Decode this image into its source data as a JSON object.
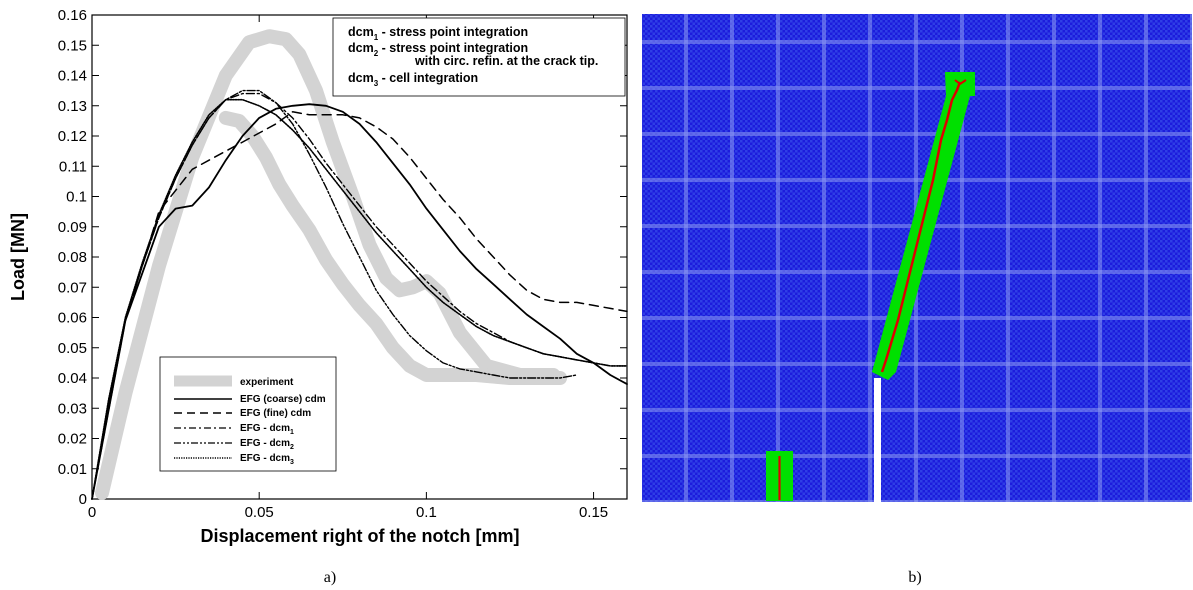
{
  "chart_data": [
    {
      "type": "line",
      "caption": "a)",
      "xlabel": "Displacement right of the notch [mm]",
      "ylabel": "Load [MN]",
      "xlim": [
        0,
        0.16
      ],
      "ylim": [
        0,
        0.16
      ],
      "x_ticks": [
        "0",
        "0.05",
        "0.1",
        "0.15"
      ],
      "x_tick_values": [
        0,
        0.05,
        0.1,
        0.15
      ],
      "y_ticks": [
        "0",
        "0.01",
        "0.02",
        "0.03",
        "0.04",
        "0.05",
        "0.06",
        "0.07",
        "0.08",
        "0.09",
        "0.1",
        "0.11",
        "0.12",
        "0.13",
        "0.14",
        "0.15",
        "0.16"
      ],
      "y_tick_values": [
        0,
        0.01,
        0.02,
        0.03,
        0.04,
        0.05,
        0.06,
        0.07,
        0.08,
        0.09,
        0.1,
        0.11,
        0.12,
        0.13,
        0.14,
        0.15,
        0.16
      ],
      "annotation": {
        "lines": [
          {
            "main": "dcm",
            "sub": "1",
            "rest": " - stress point integration"
          },
          {
            "main": "dcm",
            "sub": "2",
            "rest": " - stress point integration"
          },
          {
            "main": "",
            "sub": "",
            "rest": "with circ. refin. at the crack tip."
          },
          {
            "main": "dcm",
            "sub": "3",
            "rest": " - cell integration"
          }
        ]
      },
      "legend_position": "bottom-left",
      "series": [
        {
          "name": "experiment",
          "color": "#d3d3d3",
          "style": "thick",
          "x": [
            0.003,
            0.01,
            0.02,
            0.03,
            0.04,
            0.047,
            0.053,
            0.058,
            0.062,
            0.067,
            0.072,
            0.078,
            0.083,
            0.088,
            0.092,
            0.096,
            0.1,
            0.104,
            0.11,
            0.118,
            0.128,
            0.138
          ],
          "y": [
            0.002,
            0.035,
            0.077,
            0.113,
            0.14,
            0.151,
            0.153,
            0.152,
            0.147,
            0.135,
            0.118,
            0.1,
            0.084,
            0.073,
            0.069,
            0.07,
            0.072,
            0.068,
            0.055,
            0.044,
            0.041,
            0.041
          ]
        },
        {
          "name": "experiment",
          "color": "#d3d3d3",
          "style": "thick",
          "x": [
            0.04,
            0.044,
            0.048,
            0.052,
            0.056,
            0.06,
            0.065,
            0.07,
            0.075,
            0.08,
            0.085,
            0.09,
            0.095,
            0.1,
            0.106,
            0.115,
            0.125,
            0.135,
            0.14
          ],
          "y": [
            0.126,
            0.125,
            0.12,
            0.113,
            0.104,
            0.097,
            0.089,
            0.079,
            0.071,
            0.064,
            0.058,
            0.05,
            0.044,
            0.041,
            0.041,
            0.041,
            0.04,
            0.04,
            0.04
          ]
        },
        {
          "name": "EFG (coarse) cdm",
          "color": "#000000",
          "style": "solid",
          "x": [
            0,
            0.01,
            0.02,
            0.025,
            0.03,
            0.035,
            0.04,
            0.045,
            0.05,
            0.055,
            0.06,
            0.065,
            0.07,
            0.075,
            0.08,
            0.085,
            0.09,
            0.095,
            0.1,
            0.105,
            0.11,
            0.115,
            0.12,
            0.125,
            0.13,
            0.135,
            0.14,
            0.145,
            0.15,
            0.155,
            0.16
          ],
          "y": [
            0,
            0.059,
            0.09,
            0.096,
            0.097,
            0.103,
            0.112,
            0.12,
            0.126,
            0.129,
            0.13,
            0.1305,
            0.13,
            0.128,
            0.124,
            0.118,
            0.111,
            0.104,
            0.096,
            0.089,
            0.082,
            0.076,
            0.071,
            0.066,
            0.061,
            0.057,
            0.053,
            0.048,
            0.045,
            0.041,
            0.038
          ]
        },
        {
          "name": "EFG (fine) cdm",
          "color": "#000000",
          "style": "dashed",
          "x": [
            0,
            0.01,
            0.02,
            0.03,
            0.04,
            0.045,
            0.05,
            0.055,
            0.06,
            0.065,
            0.07,
            0.075,
            0.08,
            0.085,
            0.09,
            0.095,
            0.1,
            0.105,
            0.11,
            0.115,
            0.12,
            0.125,
            0.13,
            0.135,
            0.14,
            0.145,
            0.15,
            0.155,
            0.16
          ],
          "y": [
            0,
            0.059,
            0.095,
            0.109,
            0.115,
            0.118,
            0.121,
            0.124,
            0.128,
            0.127,
            0.127,
            0.127,
            0.126,
            0.123,
            0.119,
            0.113,
            0.106,
            0.099,
            0.093,
            0.086,
            0.08,
            0.074,
            0.069,
            0.066,
            0.065,
            0.065,
            0.064,
            0.063,
            0.062
          ]
        },
        {
          "name": "EFG - dcm",
          "sub": "1",
          "color": "#000000",
          "style": "dashdot",
          "x": [
            0,
            0.005,
            0.01,
            0.015,
            0.02,
            0.025,
            0.03,
            0.035,
            0.04,
            0.045,
            0.05,
            0.055,
            0.06,
            0.065,
            0.07,
            0.075,
            0.08,
            0.085,
            0.09,
            0.095,
            0.1,
            0.105,
            0.11,
            0.115,
            0.12,
            0.125,
            0.13,
            0.135,
            0.14,
            0.145,
            0.15,
            0.155,
            0.16
          ],
          "y": [
            0,
            0.032,
            0.059,
            0.077,
            0.093,
            0.106,
            0.117,
            0.126,
            0.132,
            0.134,
            0.134,
            0.131,
            0.126,
            0.119,
            0.111,
            0.104,
            0.097,
            0.09,
            0.084,
            0.078,
            0.072,
            0.067,
            0.062,
            0.058,
            0.055,
            0.052,
            0.05,
            0.048,
            0.047,
            0.046,
            0.045,
            0.044,
            0.044
          ]
        },
        {
          "name": "EFG - dcm",
          "sub": "2",
          "color": "#000000",
          "style": "dashdotdot",
          "x": [
            0,
            0.005,
            0.01,
            0.015,
            0.02,
            0.025,
            0.03,
            0.035,
            0.04,
            0.045,
            0.05,
            0.055,
            0.06,
            0.065,
            0.07,
            0.075,
            0.08,
            0.085,
            0.09,
            0.095,
            0.1,
            0.105,
            0.11,
            0.115,
            0.12,
            0.125,
            0.13,
            0.135,
            0.14,
            0.145
          ],
          "y": [
            0,
            0.032,
            0.059,
            0.077,
            0.093,
            0.106,
            0.117,
            0.126,
            0.132,
            0.135,
            0.135,
            0.131,
            0.124,
            0.114,
            0.103,
            0.091,
            0.08,
            0.069,
            0.061,
            0.054,
            0.049,
            0.045,
            0.043,
            0.042,
            0.041,
            0.04,
            0.04,
            0.04,
            0.04,
            0.041
          ]
        },
        {
          "name": "EFG - dcm",
          "sub": "3",
          "color": "#000000",
          "style": "dotted",
          "x": [
            0,
            0.005,
            0.01,
            0.015,
            0.02,
            0.025,
            0.03,
            0.035,
            0.04,
            0.045,
            0.05,
            0.055,
            0.06,
            0.065,
            0.07,
            0.075,
            0.08,
            0.085,
            0.09,
            0.095,
            0.1,
            0.105,
            0.11,
            0.115,
            0.12,
            0.125,
            0.13,
            0.135,
            0.14,
            0.145,
            0.15,
            0.155,
            0.16
          ],
          "y": [
            0,
            0.033,
            0.06,
            0.078,
            0.094,
            0.107,
            0.118,
            0.127,
            0.132,
            0.132,
            0.13,
            0.127,
            0.122,
            0.116,
            0.109,
            0.102,
            0.095,
            0.088,
            0.082,
            0.076,
            0.07,
            0.065,
            0.061,
            0.057,
            0.054,
            0.052,
            0.05,
            0.048,
            0.047,
            0.046,
            0.045,
            0.044,
            0.044
          ]
        }
      ]
    }
  ],
  "panel_b": {
    "caption": "b)",
    "colors": {
      "background": "#ffffff",
      "mesh": "#1c1cdc",
      "mesh_alt": "#3a4ae8",
      "process_zone": "#00e000",
      "crack": "#e00000",
      "notch": "#ffffff"
    }
  }
}
